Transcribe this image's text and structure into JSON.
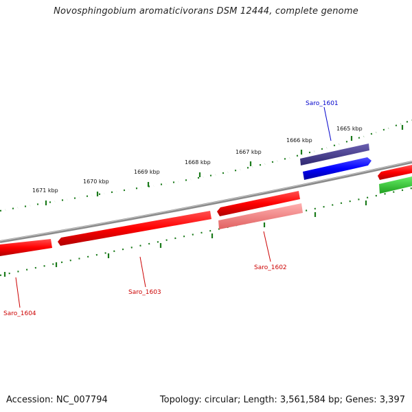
{
  "title": "Novosphingobium aromaticivorans DSM 12444, complete genome",
  "footer": {
    "accession": "Accession: NC_007794",
    "topology": "Topology: circular; Length: 3,561,584 bp; Genes: 3,397"
  },
  "ruler_labels": [
    "1671 kbp",
    "1670 kbp",
    "1669 kbp",
    "1668 kbp",
    "1667 kbp",
    "1666 kbp",
    "1665 kbp"
  ],
  "gene_labels": [
    {
      "text": "Saro_1601",
      "color": "#0000cc"
    },
    {
      "text": "Saro_1602",
      "color": "#cc0000"
    },
    {
      "text": "Saro_1603",
      "color": "#cc0000"
    },
    {
      "text": "Saro_1604",
      "color": "#cc0000"
    }
  ],
  "colors": {
    "backbone": "#808080",
    "ticks": "#1a7a1a",
    "forward_gene": "#ff0000",
    "reverse_gene": "#ff0000",
    "selected_gene": "#0000ff",
    "feature_dark": "#4b3f8f",
    "feature_light": "#f08080",
    "green_feature": "#33cc33"
  }
}
